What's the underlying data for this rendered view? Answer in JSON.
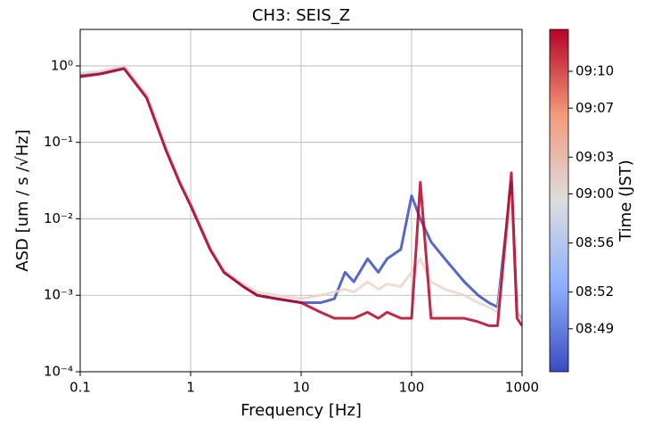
{
  "chart_data": {
    "type": "line",
    "title": "CH3: SEIS_Z",
    "x_label": "Frequency [Hz]",
    "y_label": "ASD [um / s /√Hz]",
    "xscale": "log",
    "yscale": "log",
    "grid": true,
    "xlim": [
      0.1,
      1000
    ],
    "ylim": [
      0.0001,
      3
    ],
    "xticks": [
      0.1,
      1,
      10,
      100,
      1000
    ],
    "yticks": [
      {
        "value": 0.0001,
        "label": "10⁻⁴"
      },
      {
        "value": 0.001,
        "label": "10⁻³"
      },
      {
        "value": 0.01,
        "label": "10⁻²"
      },
      {
        "value": 0.1,
        "label": "10⁻¹"
      },
      {
        "value": 1,
        "label": "10⁰"
      }
    ],
    "x": [
      0.1,
      0.15,
      0.25,
      0.4,
      0.6,
      0.8,
      1,
      1.5,
      2,
      3,
      4,
      6,
      10,
      15,
      20,
      25,
      30,
      40,
      50,
      60,
      80,
      100,
      120,
      150,
      200,
      300,
      400,
      500,
      600,
      800,
      900,
      1000
    ],
    "series": [
      {
        "name": "08:46",
        "color": "#3b4cc0",
        "values": [
          0.75,
          0.8,
          0.95,
          0.4,
          0.08,
          0.03,
          0.015,
          0.004,
          0.002,
          0.0013,
          0.001,
          0.0009,
          0.0008,
          0.0008,
          0.0009,
          0.002,
          0.0015,
          0.003,
          0.002,
          0.003,
          0.004,
          0.02,
          0.01,
          0.005,
          0.003,
          0.0015,
          0.001,
          0.0008,
          0.0007,
          0.03,
          0.0006,
          0.0005
        ]
      },
      {
        "name": "09:00",
        "color": "#e8d6cc",
        "values": [
          0.8,
          0.85,
          1.0,
          0.42,
          0.085,
          0.031,
          0.016,
          0.0042,
          0.0021,
          0.0014,
          0.0011,
          0.001,
          0.0009,
          0.001,
          0.0011,
          0.0012,
          0.0011,
          0.0015,
          0.0012,
          0.0014,
          0.0013,
          0.002,
          0.003,
          0.0015,
          0.0012,
          0.001,
          0.0008,
          0.0007,
          0.0006,
          0.02,
          0.0006,
          0.0005
        ]
      },
      {
        "name": "09:12",
        "color": "#b40426",
        "values": [
          0.72,
          0.78,
          0.92,
          0.38,
          0.078,
          0.029,
          0.015,
          0.004,
          0.002,
          0.0013,
          0.001,
          0.0009,
          0.0008,
          0.0006,
          0.0005,
          0.0005,
          0.0005,
          0.0006,
          0.0005,
          0.0006,
          0.0005,
          0.0005,
          0.03,
          0.0005,
          0.0005,
          0.0005,
          0.00045,
          0.0004,
          0.0004,
          0.04,
          0.0005,
          0.0004
        ]
      }
    ],
    "colorbar": {
      "label": "Time (JST)",
      "lim": [
        "08:45:30",
        "09:13:25"
      ],
      "ticks": [
        "08:49",
        "08:52",
        "08:56",
        "09:00",
        "09:03",
        "09:07",
        "09:10"
      ]
    }
  }
}
